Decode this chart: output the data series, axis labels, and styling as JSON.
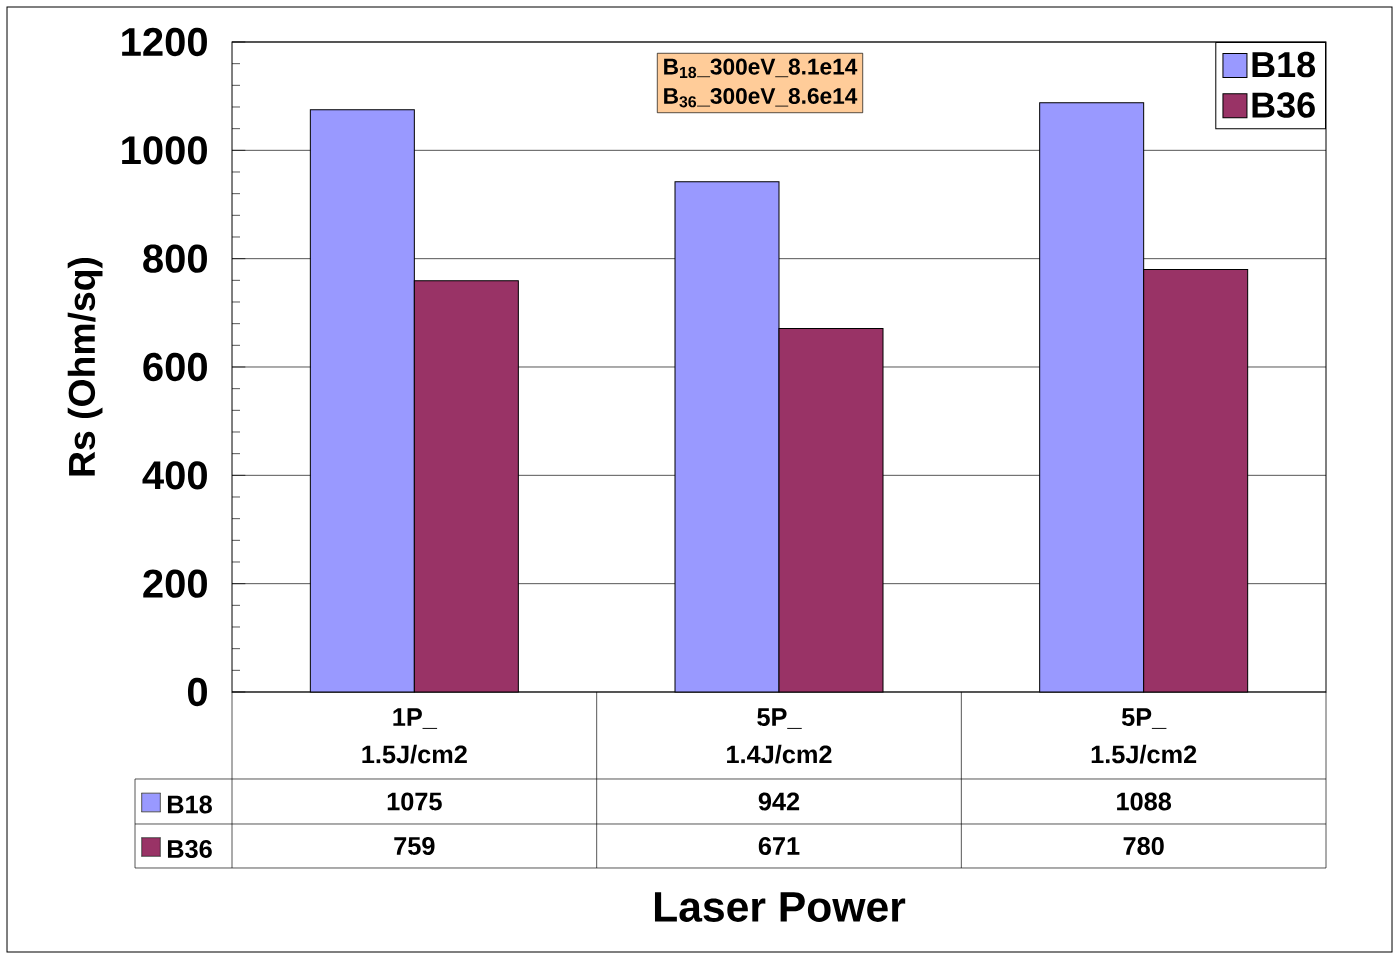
{
  "chart_data": {
    "type": "bar",
    "xlabel": "Laser Power",
    "ylabel": "Rs (Ohm/sq)",
    "categories": [
      "1P_ 1.5J/cm2",
      "5P_ 1.4J/cm2",
      "5P_ 1.5J/cm2"
    ],
    "series": [
      {
        "name": "B18",
        "color": "#9999ff",
        "values": [
          1075,
          942,
          1088
        ]
      },
      {
        "name": "B36",
        "color": "#993366",
        "values": [
          759,
          671,
          780
        ]
      }
    ],
    "ylim": [
      0,
      1200
    ],
    "yticks": [
      0,
      200,
      400,
      600,
      800,
      1000,
      1200
    ],
    "grid": "y",
    "legend": "top right",
    "data_labels": true,
    "annotations": [
      "B$_{18}$_300eV_8.1e14",
      "B$_{36}$_300eV_8.6e14"
    ]
  }
}
